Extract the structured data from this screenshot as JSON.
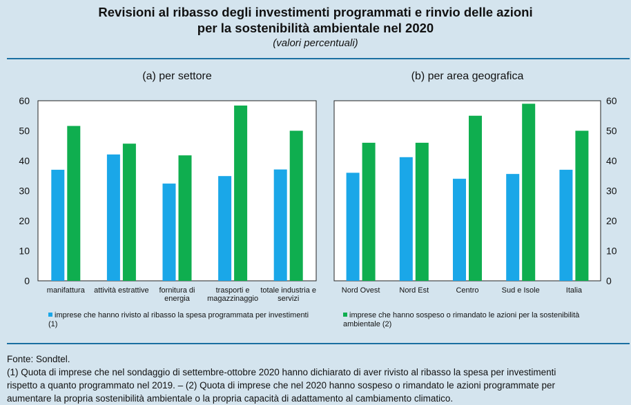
{
  "header": {
    "title_line1": "Revisioni al ribasso degli investimenti programmati e rinvio delle azioni",
    "title_line2": "per la sostenibilità ambientale nel 2020",
    "subtitle": "(valori percentuali)"
  },
  "colors": {
    "series1": "#1aa7e8",
    "series2": "#0fae4f"
  },
  "chart_data": [
    {
      "type": "bar",
      "title": "(a) per settore",
      "categories": [
        [
          "manifattura"
        ],
        [
          "attività estrattive"
        ],
        [
          "fornitura di",
          "energia"
        ],
        [
          "trasporti e",
          "magazzinaggio"
        ],
        [
          "totale industria e",
          "servizi"
        ]
      ],
      "series": [
        {
          "name": "imprese che hanno rivisto al ribasso la spesa programmata per investimenti (1)",
          "values": [
            37.0,
            42.1,
            32.4,
            34.9,
            37.1
          ]
        },
        {
          "name": "imprese che hanno sospeso o rimandato le azioni per la sostenibilità ambientale (2)",
          "values": [
            51.6,
            45.7,
            41.8,
            58.4,
            50.0
          ]
        }
      ],
      "ylim": [
        0,
        60
      ],
      "yticks": [
        "0",
        "10",
        "20",
        "30",
        "40",
        "50",
        "60"
      ],
      "yaxis_side": "left",
      "grid": false
    },
    {
      "type": "bar",
      "title": "(b) per area geografica",
      "categories": [
        [
          "Nord Ovest"
        ],
        [
          "Nord Est"
        ],
        [
          "Centro"
        ],
        [
          "Sud e Isole"
        ],
        [
          "Italia"
        ]
      ],
      "series": [
        {
          "name": "imprese che hanno rivisto al ribasso la spesa programmata per investimenti (1)",
          "values": [
            36.0,
            41.2,
            34.0,
            35.6,
            37.0
          ]
        },
        {
          "name": "imprese che hanno sospeso o rimandato le azioni per la sostenibilità ambientale (2)",
          "values": [
            46.0,
            46.0,
            55.0,
            59.0,
            50.0
          ]
        }
      ],
      "ylim": [
        0,
        60
      ],
      "yticks": [
        "0",
        "10",
        "20",
        "30",
        "40",
        "50",
        "60"
      ],
      "yaxis_side": "right",
      "grid": false
    }
  ],
  "legend": {
    "item1_line1": "imprese che hanno rivisto al ribasso la spesa programmata per investimenti",
    "item1_line2": "(1)",
    "item2_line1": "imprese che hanno sospeso o rimandato le azioni per la sostenibilità",
    "item2_line2": "ambientale (2)"
  },
  "footer": {
    "source": "Fonte: Sondtel.",
    "note_line1": "(1) Quota di imprese che nel sondaggio di settembre-ottobre 2020 hanno dichiarato di aver rivisto al ribasso la spesa per investimenti",
    "note_line2": "rispetto a quanto programmato nel 2019. – (2) Quota di imprese che nel 2020 hanno sospeso o rimandato le azioni programmate per",
    "note_line3": "aumentare la propria sostenibilità ambientale o la propria capacità di adattamento al cambiamento climatico."
  }
}
